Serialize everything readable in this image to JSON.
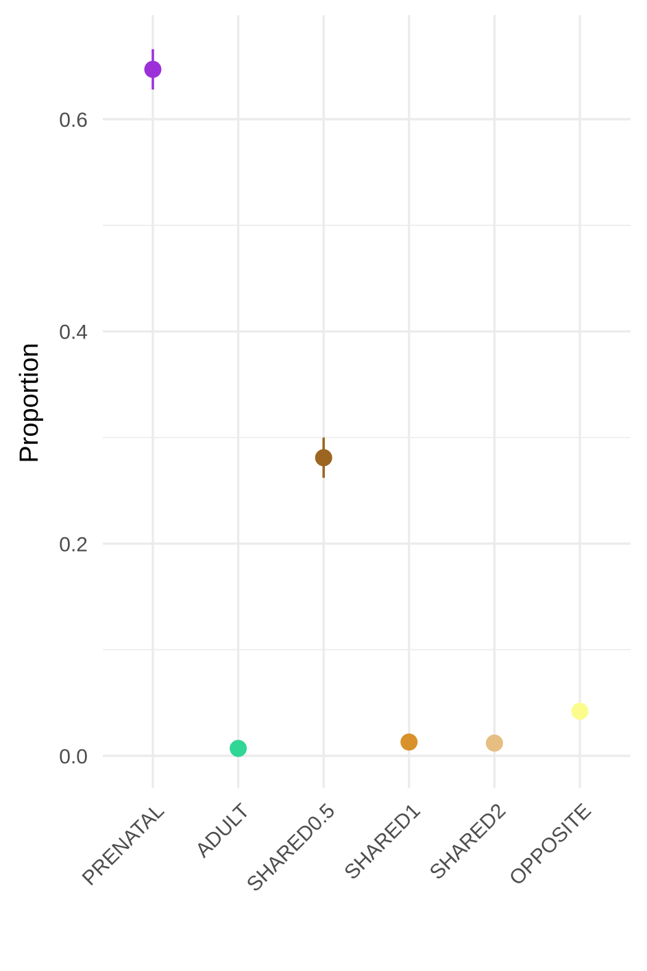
{
  "chart_data": {
    "type": "scatter",
    "title": "",
    "xlabel": "",
    "ylabel": "Proportion",
    "categories": [
      "PRENATAL",
      "ADULT",
      "SHARED0.5",
      "SHARED1",
      "SHARED2",
      "OPPOSITE"
    ],
    "values": [
      0.647,
      0.007,
      0.281,
      0.013,
      0.012,
      0.042
    ],
    "error_low": [
      0.628,
      0.007,
      0.262,
      0.013,
      0.012,
      0.042
    ],
    "error_high": [
      0.666,
      0.007,
      0.3,
      0.013,
      0.012,
      0.042
    ],
    "colors": [
      "#9B30D9",
      "#2FD695",
      "#9C6520",
      "#D8912B",
      "#E6BE82",
      "#FCFC8C"
    ],
    "ylim": [
      -0.075,
      0.7
    ],
    "yticks": [
      0.0,
      0.2,
      0.4,
      0.6
    ],
    "ytick_labels": [
      "0.0",
      "0.2",
      "0.4",
      "0.6"
    ],
    "grid": true,
    "legend": "none",
    "grid_color": "#ebebeb"
  }
}
